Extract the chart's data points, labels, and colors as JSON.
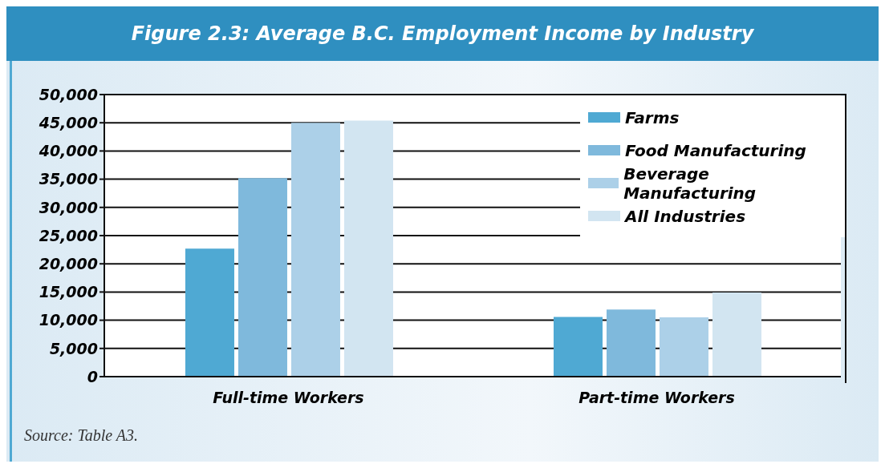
{
  "chart_data": {
    "type": "bar",
    "title": "Figure 2.3: Average B.C. Employment Income by Industry",
    "categories": [
      "Full-time Workers",
      "Part-time Workers"
    ],
    "series": [
      {
        "name": "Farms",
        "color": "#4fa9d3",
        "values": [
          22700,
          10600
        ]
      },
      {
        "name": "Food Manufacturing",
        "color": "#7fb9dc",
        "values": [
          35200,
          11900
        ]
      },
      {
        "name": "Beverage Manufacturing",
        "color": "#acd0e8",
        "values": [
          45000,
          10500
        ]
      },
      {
        "name": "All Industries",
        "color": "#d2e5f1",
        "values": [
          45400,
          14900
        ]
      }
    ],
    "ylim": [
      0,
      50000
    ],
    "yticks": [
      {
        "value": 0,
        "label": "0"
      },
      {
        "value": 5000,
        "label": "5,000"
      },
      {
        "value": 10000,
        "label": "10,000"
      },
      {
        "value": 15000,
        "label": "15,000"
      },
      {
        "value": 20000,
        "label": "20,000"
      },
      {
        "value": 25000,
        "label": "25,000"
      },
      {
        "value": 30000,
        "label": "30,000"
      },
      {
        "value": 35000,
        "label": "35,000"
      },
      {
        "value": 40000,
        "label": "40,000"
      },
      {
        "value": 45000,
        "label": "45,000"
      },
      {
        "value": 50000,
        "label": "50,000"
      }
    ],
    "grid": "y",
    "legend": "top right",
    "annotations": [
      "Source: Table A3."
    ]
  }
}
